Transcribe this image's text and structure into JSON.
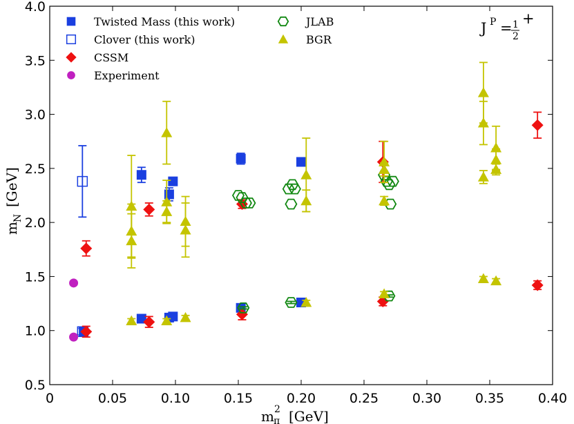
{
  "chart_data": {
    "type": "scatter",
    "xlabel": "m",
    "xlabel_sub": "π",
    "xlabel_sup": "2",
    "xlabel_unit": "[GeV]",
    "ylabel": "m",
    "ylabel_sub": "N",
    "ylabel_unit": "[GeV]",
    "xlim": [
      0,
      0.4
    ],
    "ylim": [
      0.5,
      4.0
    ],
    "xticks": [
      "0",
      "0.05",
      "0.10",
      "0.15",
      "0.20",
      "0.25",
      "0.30",
      "0.35",
      "0.40"
    ],
    "xtick_values": [
      0,
      0.05,
      0.1,
      0.15,
      0.2,
      0.25,
      0.3,
      0.35,
      0.4
    ],
    "yticks": [
      "0.5",
      "1.0",
      "1.5",
      "2.0",
      "2.5",
      "3.0",
      "3.5",
      "4.0"
    ],
    "ytick_values": [
      0.5,
      1.0,
      1.5,
      2.0,
      2.5,
      3.0,
      3.5,
      4.0
    ],
    "grid": false,
    "legend_placement": "top-left",
    "annotation": {
      "base": "J",
      "sup": "P",
      "eq": "=",
      "num": "1",
      "den": "2",
      "sign": "+"
    },
    "series": [
      {
        "name": "Twisted Mass (this work)",
        "marker": "square-filled",
        "color": "#1a3fe0",
        "points": [
          {
            "x": 0.027,
            "y": 0.99,
            "e": 0.02
          },
          {
            "x": 0.073,
            "y": 1.11,
            "e": 0.02
          },
          {
            "x": 0.095,
            "y": 1.12,
            "e": 0.02
          },
          {
            "x": 0.098,
            "y": 1.13,
            "e": 0.02
          },
          {
            "x": 0.152,
            "y": 1.21,
            "e": 0.02
          },
          {
            "x": 0.2,
            "y": 1.26,
            "e": 0.02
          },
          {
            "x": 0.073,
            "y": 2.44,
            "e": 0.07
          },
          {
            "x": 0.095,
            "y": 2.26,
            "e": 0.06
          },
          {
            "x": 0.098,
            "y": 2.38,
            "e": 0.03
          },
          {
            "x": 0.152,
            "y": 2.59,
            "e": 0.05
          },
          {
            "x": 0.2,
            "y": 2.56,
            "e": 0.03
          }
        ]
      },
      {
        "name": "Clover (this work)",
        "marker": "square-open",
        "color": "#1a3fe0",
        "points": [
          {
            "x": 0.026,
            "y": 0.99,
            "e": 0.03
          },
          {
            "x": 0.026,
            "y": 2.38,
            "e": 0.33
          }
        ]
      },
      {
        "name": "CSSM",
        "marker": "diamond-filled",
        "color": "#ee1111",
        "points": [
          {
            "x": 0.029,
            "y": 0.99,
            "e": 0.05
          },
          {
            "x": 0.079,
            "y": 1.08,
            "e": 0.05
          },
          {
            "x": 0.153,
            "y": 1.15,
            "e": 0.05
          },
          {
            "x": 0.265,
            "y": 1.27,
            "e": 0.04
          },
          {
            "x": 0.388,
            "y": 1.42,
            "e": 0.04
          },
          {
            "x": 0.029,
            "y": 1.76,
            "e": 0.07
          },
          {
            "x": 0.079,
            "y": 2.12,
            "e": 0.06
          },
          {
            "x": 0.153,
            "y": 2.17,
            "e": 0.04
          },
          {
            "x": 0.265,
            "y": 2.56,
            "e": 0.19
          },
          {
            "x": 0.388,
            "y": 2.9,
            "e": 0.12
          }
        ]
      },
      {
        "name": "Experiment",
        "marker": "circle-filled",
        "color": "#c020c0",
        "points": [
          {
            "x": 0.019,
            "y": 0.94
          },
          {
            "x": 0.019,
            "y": 1.44
          }
        ]
      },
      {
        "name": "JLAB",
        "marker": "hexagon-open",
        "color": "#118811",
        "points": [
          {
            "x": 0.154,
            "y": 1.21,
            "e": 0.01
          },
          {
            "x": 0.192,
            "y": 1.26,
            "e": 0.01
          },
          {
            "x": 0.27,
            "y": 1.32,
            "e": 0.01
          },
          {
            "x": 0.15,
            "y": 2.25
          },
          {
            "x": 0.153,
            "y": 2.23
          },
          {
            "x": 0.156,
            "y": 2.18
          },
          {
            "x": 0.159,
            "y": 2.18
          },
          {
            "x": 0.19,
            "y": 2.31
          },
          {
            "x": 0.192,
            "y": 2.17
          },
          {
            "x": 0.193,
            "y": 2.35
          },
          {
            "x": 0.195,
            "y": 2.31
          },
          {
            "x": 0.266,
            "y": 2.44
          },
          {
            "x": 0.268,
            "y": 2.38
          },
          {
            "x": 0.27,
            "y": 2.35
          },
          {
            "x": 0.271,
            "y": 2.17
          },
          {
            "x": 0.273,
            "y": 2.38
          }
        ]
      },
      {
        "name": "BGR",
        "marker": "triangle-filled",
        "color": "#c4c400",
        "points": [
          {
            "x": 0.065,
            "y": 1.09,
            "e": 0.02
          },
          {
            "x": 0.093,
            "y": 1.09,
            "e": 0.02
          },
          {
            "x": 0.108,
            "y": 1.12,
            "e": 0.02
          },
          {
            "x": 0.204,
            "y": 1.26,
            "e": 0.02
          },
          {
            "x": 0.266,
            "y": 1.34,
            "e": 0.02
          },
          {
            "x": 0.345,
            "y": 1.48,
            "e": 0.02
          },
          {
            "x": 0.355,
            "y": 1.46,
            "e": 0.02
          },
          {
            "x": 0.065,
            "y": 2.15,
            "e": 0.47
          },
          {
            "x": 0.065,
            "y": 1.92,
            "e": 0.25
          },
          {
            "x": 0.065,
            "y": 1.83,
            "e": 0.25
          },
          {
            "x": 0.093,
            "y": 2.83,
            "e": 0.29
          },
          {
            "x": 0.093,
            "y": 2.19,
            "e": 0.2
          },
          {
            "x": 0.093,
            "y": 2.1,
            "e": 0.1
          },
          {
            "x": 0.108,
            "y": 2.01,
            "e": 0.23
          },
          {
            "x": 0.108,
            "y": 1.93,
            "e": 0.25
          },
          {
            "x": 0.204,
            "y": 2.44,
            "e": 0.34
          },
          {
            "x": 0.204,
            "y": 2.2,
            "e": 0.1
          },
          {
            "x": 0.266,
            "y": 2.56,
            "e": 0.19
          },
          {
            "x": 0.266,
            "y": 2.49,
            "e": 0.06
          },
          {
            "x": 0.266,
            "y": 2.2,
            "e": 0.04
          },
          {
            "x": 0.345,
            "y": 3.2,
            "e": 0.28
          },
          {
            "x": 0.345,
            "y": 2.92,
            "e": 0.2
          },
          {
            "x": 0.345,
            "y": 2.42,
            "e": 0.06
          },
          {
            "x": 0.355,
            "y": 2.69,
            "e": 0.2
          },
          {
            "x": 0.355,
            "y": 2.58,
            "e": 0.1
          },
          {
            "x": 0.355,
            "y": 2.49,
            "e": 0.05
          }
        ]
      }
    ]
  }
}
